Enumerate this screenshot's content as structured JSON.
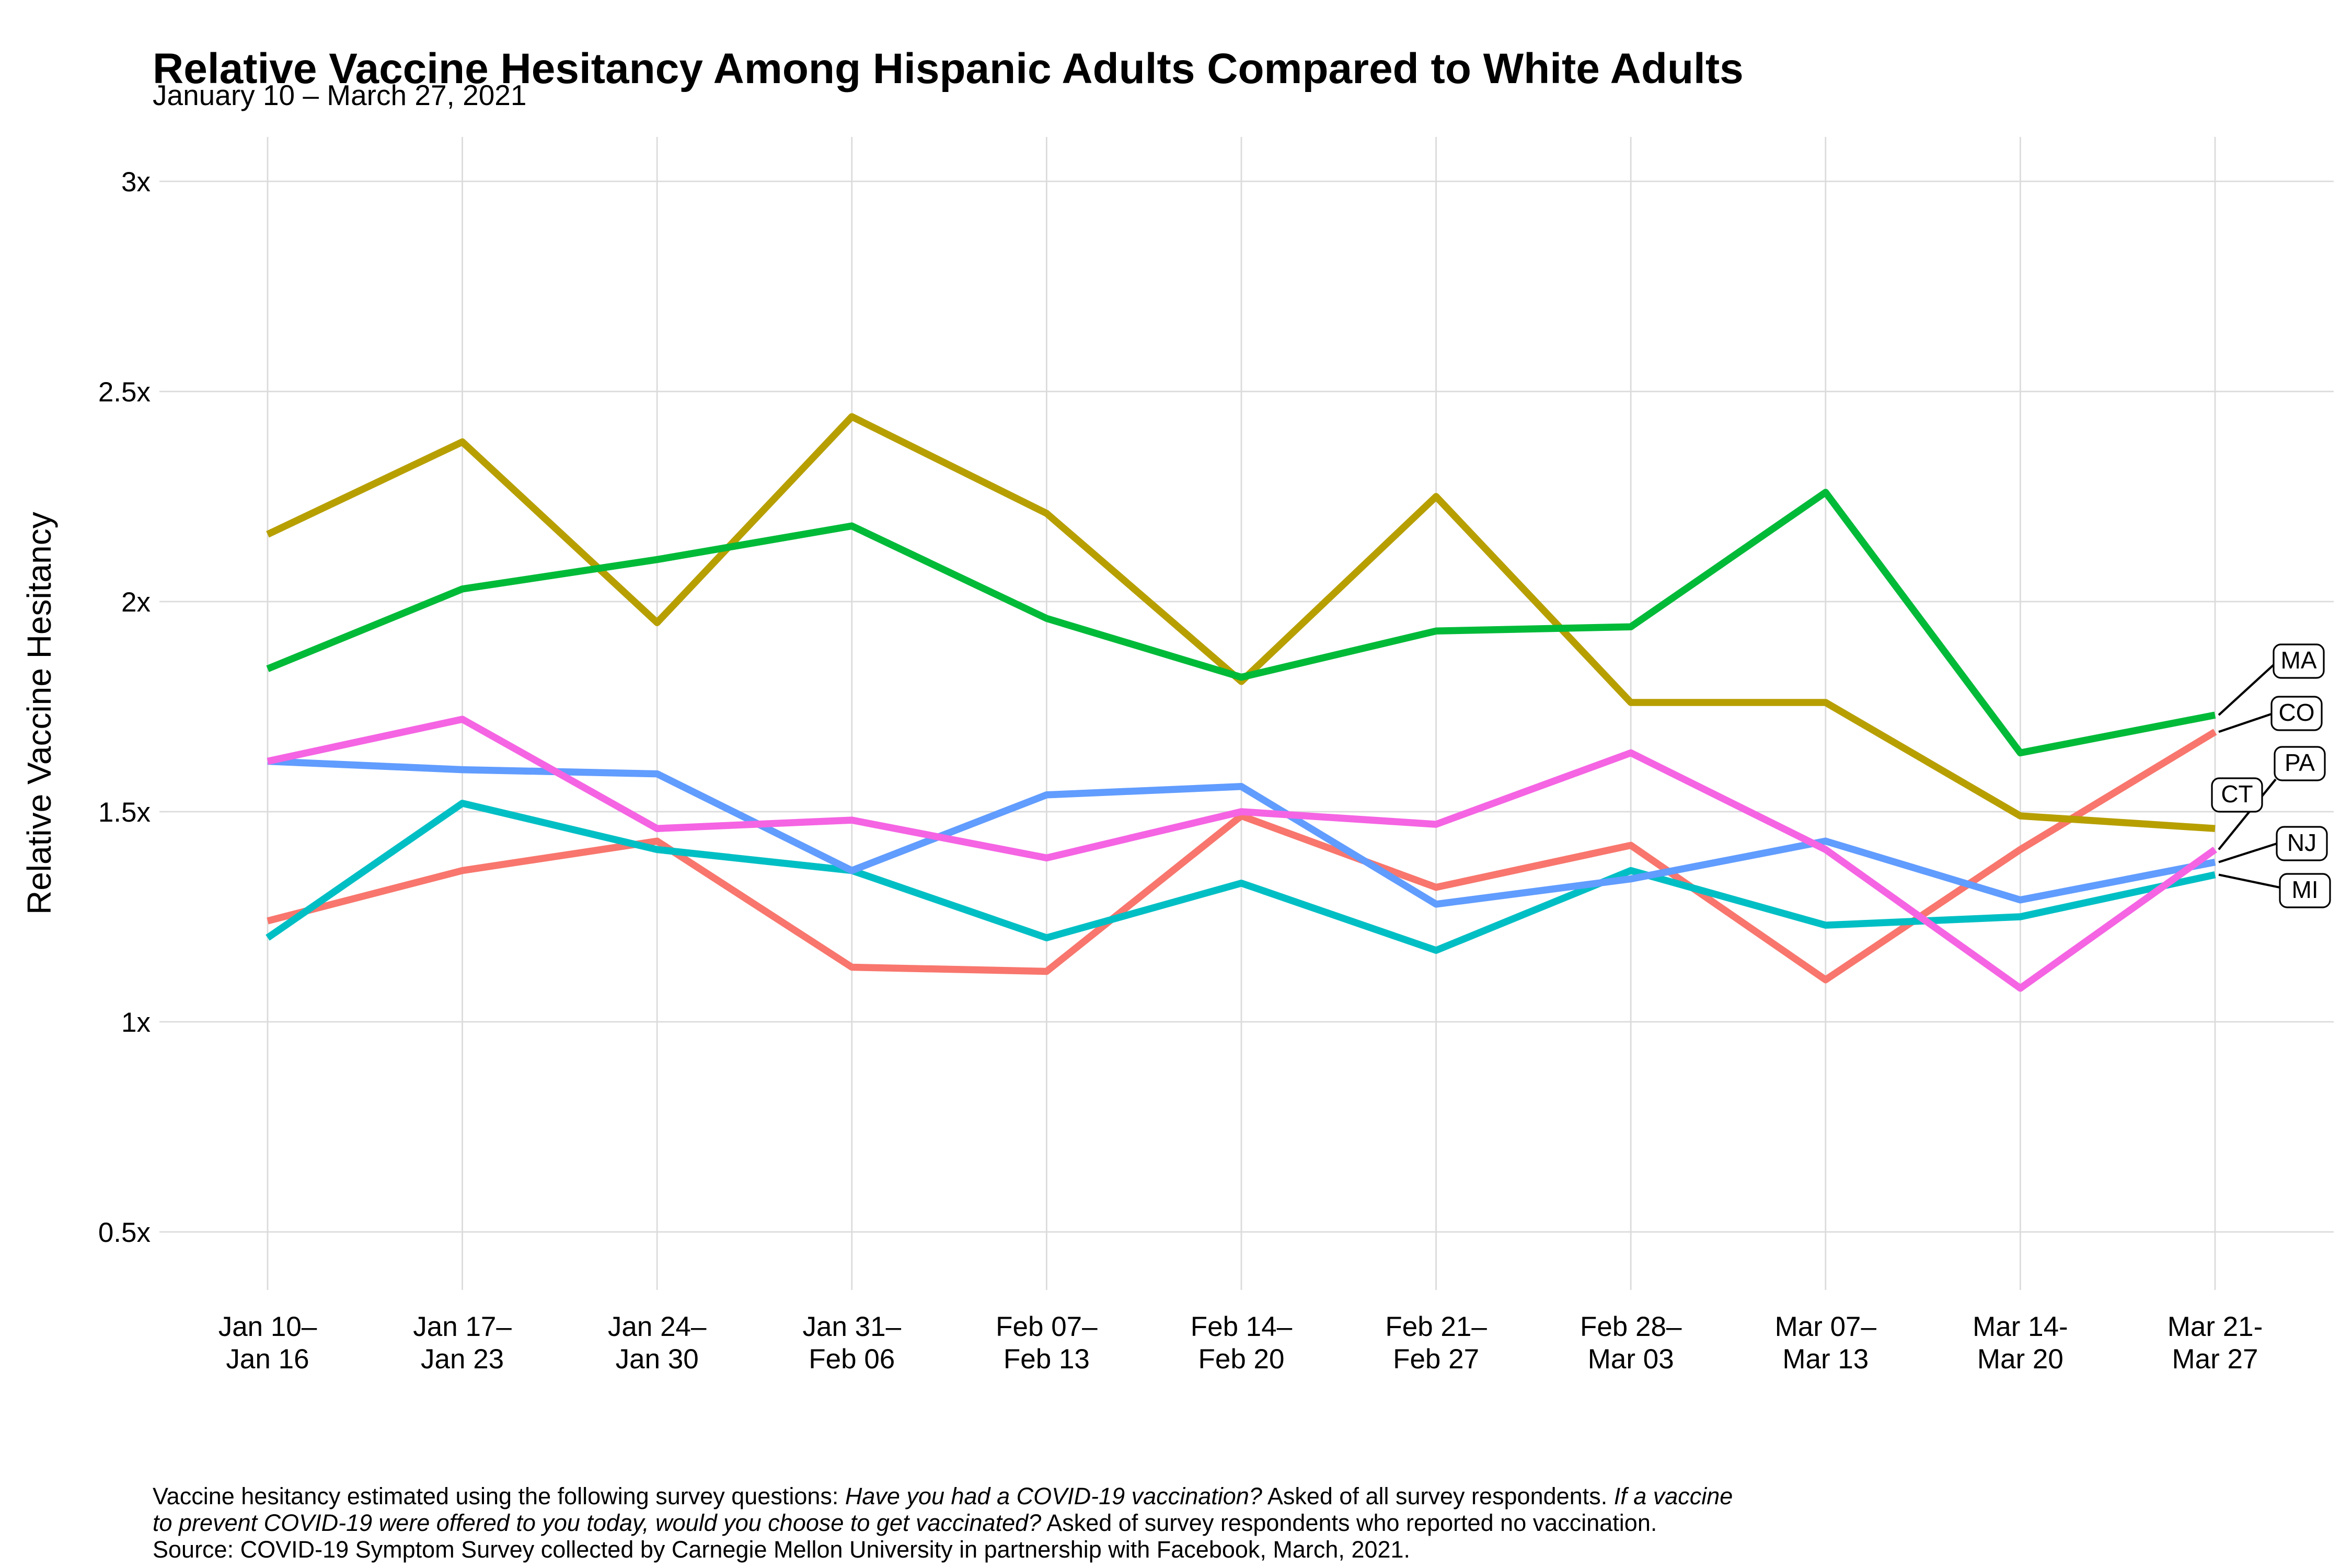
{
  "chart_data": {
    "type": "line",
    "title": "Relative Vaccine Hesitancy Among Hispanic Adults Compared to White Adults",
    "subtitle": "January 10 – March 27, 2021",
    "ylabel": "Relative Vaccine Hesitancy",
    "grid": true,
    "grid_color": "#DBDBDB",
    "text_color": "#000000",
    "ylim": [
      0.36,
      3.08
    ],
    "y_ticks": [
      {
        "label": "3x",
        "value": 3.0
      },
      {
        "label": "2.5x",
        "value": 2.5
      },
      {
        "label": "2x",
        "value": 2.0
      },
      {
        "label": "1.5x",
        "value": 1.5
      },
      {
        "label": "1x",
        "value": 1.0
      },
      {
        "label": "0.5x",
        "value": 0.5
      }
    ],
    "categories": [
      [
        "Jan 10–",
        "Jan 16"
      ],
      [
        "Jan 17–",
        "Jan 23"
      ],
      [
        "Jan 24–",
        "Jan 30"
      ],
      [
        "Jan 31–",
        "Feb 06"
      ],
      [
        "Feb 07–",
        "Feb 13"
      ],
      [
        "Feb 14–",
        "Feb 20"
      ],
      [
        "Feb 21–",
        "Feb 27"
      ],
      [
        "Feb 28–",
        "Mar 03"
      ],
      [
        "Mar 07–",
        "Mar 13"
      ],
      [
        "Mar 14-",
        "Mar 20"
      ],
      [
        "Mar 21-",
        "Mar 27"
      ]
    ],
    "series": [
      {
        "id": "CO",
        "label": "CO",
        "color": "#F8766D",
        "values": [
          1.24,
          1.36,
          1.43,
          1.13,
          1.12,
          1.49,
          1.32,
          1.42,
          1.1,
          1.41,
          1.69
        ]
      },
      {
        "id": "CT",
        "label": "CT",
        "color": "#B79F00",
        "values": [
          2.16,
          2.38,
          1.95,
          2.44,
          2.21,
          1.81,
          2.25,
          1.76,
          1.76,
          1.49,
          1.46
        ]
      },
      {
        "id": "MA",
        "label": "MA",
        "color": "#00BA38",
        "values": [
          1.84,
          2.03,
          2.1,
          2.18,
          1.96,
          1.82,
          1.93,
          1.94,
          2.26,
          1.64,
          1.73
        ]
      },
      {
        "id": "MI",
        "label": "MI",
        "color": "#00BFC4",
        "values": [
          1.2,
          1.52,
          1.41,
          1.36,
          1.2,
          1.33,
          1.17,
          1.36,
          1.23,
          1.25,
          1.35
        ]
      },
      {
        "id": "NJ",
        "label": "NJ",
        "color": "#619CFF",
        "values": [
          1.62,
          1.6,
          1.59,
          1.36,
          1.54,
          1.56,
          1.28,
          1.34,
          1.43,
          1.29,
          1.38
        ]
      },
      {
        "id": "PA",
        "label": "PA",
        "color": "#F564E3",
        "values": [
          1.62,
          1.72,
          1.46,
          1.48,
          1.39,
          1.5,
          1.47,
          1.64,
          1.41,
          1.08,
          1.41
        ]
      }
    ],
    "end_labels": [
      "MA",
      "CO",
      "PA",
      "CT",
      "NJ",
      "MI"
    ],
    "legend_position": "right-edge-labels",
    "footnote_lines": [
      [
        {
          "t": "Vaccine hesitancy estimated using the following survey questions: ",
          "i": false
        },
        {
          "t": "Have you had a COVID-19 vaccination?",
          "i": true
        },
        {
          "t": " Asked of all survey respondents. ",
          "i": false
        },
        {
          "t": "If a vaccine",
          "i": true
        }
      ],
      [
        {
          "t": "to prevent COVID-19 were offered to you today, would you choose to get vaccinated?",
          "i": true
        },
        {
          "t": " Asked of survey respondents who reported no vaccination.",
          "i": false
        }
      ],
      [
        {
          "t": "Source: COVID-19 Symptom Survey collected by Carnegie Mellon University in partnership with Facebook, March, 2021.",
          "i": false
        }
      ]
    ]
  }
}
